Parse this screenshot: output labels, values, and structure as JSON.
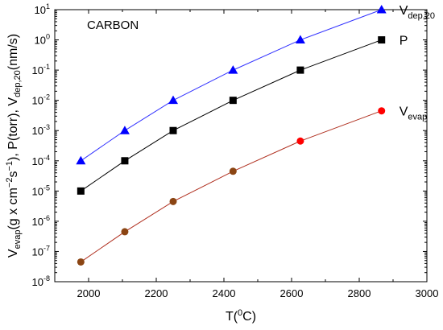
{
  "chart_data": {
    "type": "line",
    "title": "",
    "annotation": "CARBON",
    "xlabel": {
      "main": "T(",
      "sup": "0",
      "tail": "C)"
    },
    "ylabel": {
      "parts": [
        {
          "t": "V",
          "s": "n"
        },
        {
          "t": "evap",
          "s": "sub"
        },
        {
          "t": "(g x cm",
          "s": "n"
        },
        {
          "t": "−2",
          "s": "sup"
        },
        {
          "t": "s",
          "s": "n"
        },
        {
          "t": "−1",
          "s": "sup"
        },
        {
          "t": "), P(torr), V",
          "s": "n"
        },
        {
          "t": "dep,20",
          "s": "sub"
        },
        {
          "t": "(nm/s)",
          "s": "n"
        }
      ]
    },
    "xlim": [
      1900,
      3000
    ],
    "ylim": [
      1e-08,
      10
    ],
    "yscale": "log",
    "xticks": [
      2000,
      2200,
      2400,
      2600,
      2800,
      3000
    ],
    "yticks": [
      {
        "exp": -8,
        "label": "-8"
      },
      {
        "exp": -7,
        "label": "-7"
      },
      {
        "exp": -6,
        "label": "-6"
      },
      {
        "exp": -5,
        "label": "-5"
      },
      {
        "exp": -4,
        "label": "-4"
      },
      {
        "exp": -3,
        "label": "-3"
      },
      {
        "exp": -2,
        "label": "-2"
      },
      {
        "exp": -1,
        "label": "-1"
      },
      {
        "exp": 0,
        "label": "0"
      },
      {
        "exp": 1,
        "label": "1"
      }
    ],
    "ytick_base": "10",
    "series": [
      {
        "label_main": "V",
        "label_sub": "dep,20",
        "marker": "triangle",
        "color": "#0000ff",
        "line_color": "#3333ff",
        "x": [
          1977,
          2107,
          2250,
          2427,
          2626,
          2866
        ],
        "y": [
          0.0001,
          0.001,
          0.01,
          0.1,
          1,
          10
        ]
      },
      {
        "label_main": "P",
        "label_sub": "",
        "marker": "square",
        "color": "#000000",
        "line_color": "#000000",
        "x": [
          1977,
          2107,
          2250,
          2427,
          2626,
          2866
        ],
        "y": [
          1e-05,
          0.0001,
          0.001,
          0.01,
          0.1,
          1
        ]
      },
      {
        "label_main": "V",
        "label_sub": "evap",
        "marker": "circle",
        "color": "#ff0000",
        "line_color": "#b03020",
        "point_colors": [
          "#8b4513",
          "#8b4513",
          "#8b4513",
          "#8b4513",
          "#ff0000",
          "#ff0000"
        ],
        "x": [
          1977,
          2107,
          2250,
          2427,
          2626,
          2866
        ],
        "y": [
          4.5e-08,
          4.5e-07,
          4.5e-06,
          4.5e-05,
          0.00045,
          0.0045
        ]
      }
    ]
  }
}
